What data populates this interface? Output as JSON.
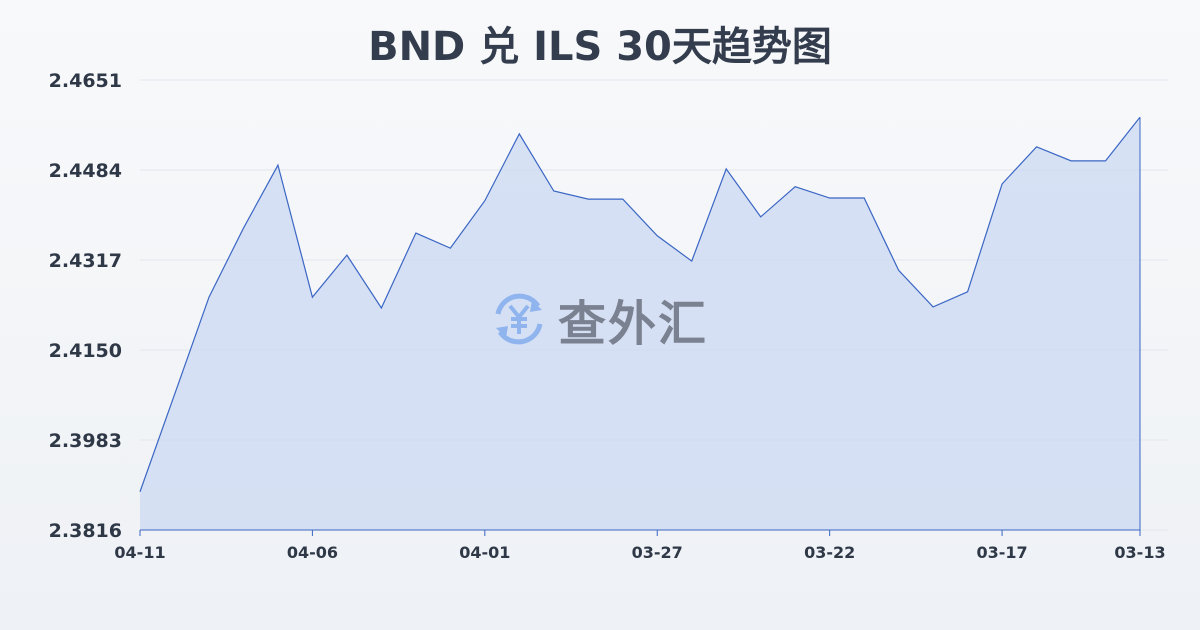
{
  "chart_data": {
    "type": "area",
    "title": "BND 兑 ILS 30天趋势图",
    "xlabel": "",
    "ylabel": "",
    "categories": [
      "04-11",
      "04-10",
      "04-09",
      "04-08",
      "04-07",
      "04-06",
      "04-05",
      "04-04",
      "04-03",
      "04-02",
      "04-01",
      "03-31",
      "03-30",
      "03-29",
      "03-28",
      "03-27",
      "03-26",
      "03-25",
      "03-24",
      "03-23",
      "03-22",
      "03-21",
      "03-20",
      "03-19",
      "03-18",
      "03-17",
      "03-16",
      "03-15",
      "03-14",
      "03-13"
    ],
    "values": [
      2.3887,
      2.4067,
      2.4248,
      2.4376,
      2.4493,
      2.4248,
      2.4326,
      2.4228,
      2.4367,
      2.4339,
      2.4427,
      2.4551,
      2.4445,
      2.443,
      2.443,
      2.4362,
      2.4315,
      2.4486,
      2.4397,
      2.4453,
      2.4432,
      2.4432,
      2.4298,
      2.423,
      2.4258,
      2.4458,
      2.4527,
      2.4501,
      2.4501,
      2.4582
    ],
    "xticks": [
      "04-11",
      "04-06",
      "04-01",
      "03-27",
      "03-22",
      "03-17",
      "03-13"
    ],
    "yticks": [
      "2.4651",
      "2.4484",
      "2.4317",
      "2.4150",
      "2.3983",
      "2.3816"
    ],
    "ylim": [
      2.3816,
      2.4651
    ],
    "grid": true,
    "colors": {
      "line": "#3a66c4",
      "fill": "#c9d7f2"
    }
  },
  "watermark": {
    "text": "查外汇",
    "icon": "yen-exchange-icon"
  }
}
